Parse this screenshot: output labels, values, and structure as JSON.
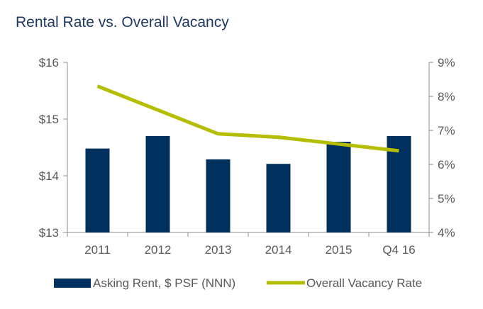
{
  "chart_data": {
    "type": "bar",
    "title": "Rental Rate vs. Overall Vacancy",
    "categories": [
      "2011",
      "2012",
      "2013",
      "2014",
      "2015",
      "Q4 16"
    ],
    "series": [
      {
        "name": "Asking Rent, $ PSF (NNN)",
        "type": "bar",
        "axis": "left",
        "color": "#00305e",
        "values": [
          14.48,
          14.7,
          14.29,
          14.21,
          14.6,
          14.7
        ]
      },
      {
        "name": "Overall Vacancy Rate",
        "type": "line",
        "axis": "right",
        "color": "#b5bd00",
        "values": [
          8.3,
          7.6,
          6.9,
          6.8,
          6.6,
          6.4
        ]
      }
    ],
    "left_axis": {
      "ylim": [
        13,
        16
      ],
      "ticks": [
        13,
        14,
        15,
        16
      ],
      "tick_labels": [
        "$13",
        "$14",
        "$15",
        "$16"
      ]
    },
    "right_axis": {
      "ylim": [
        4,
        9
      ],
      "ticks": [
        4,
        5,
        6,
        7,
        8,
        9
      ],
      "tick_labels": [
        "4%",
        "5%",
        "6%",
        "7%",
        "8%",
        "9%"
      ]
    },
    "grid": false,
    "legend_position": "bottom",
    "axis_color": "#8c8c8c"
  }
}
